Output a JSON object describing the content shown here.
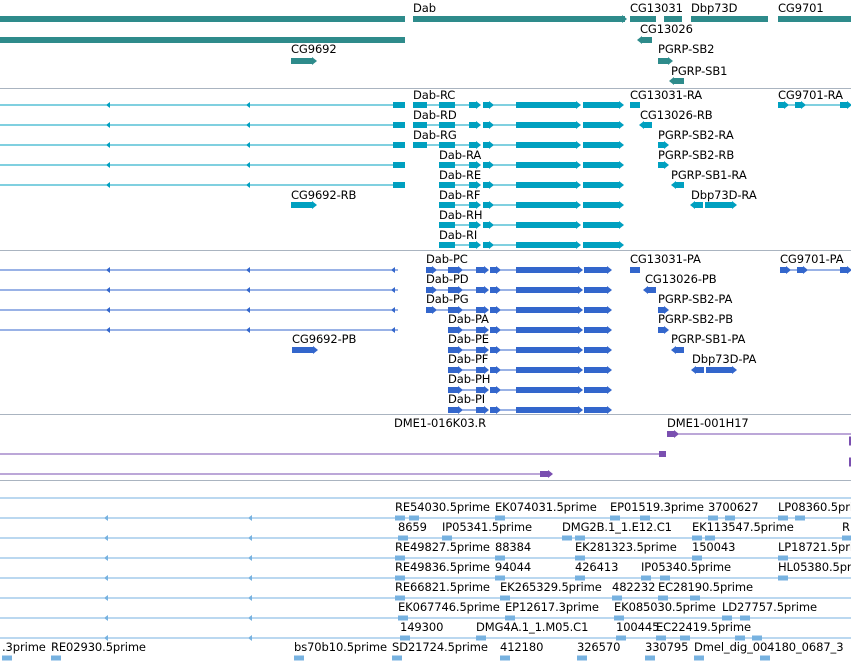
{
  "colors": {
    "gene": "#2e8b8b",
    "transcript": "#00a0c0",
    "protein": "#3366cc",
    "clone": "#7a4fb0",
    "est": "#77b2e0",
    "separator": "#aab4c0"
  },
  "tracks": {
    "genes": {
      "labels": [
        "Dab",
        "CG13031",
        "Dbp73D",
        "CG9701",
        "CG13026",
        "CG9692",
        "PGRP-SB2",
        "PGRP-SB1"
      ]
    },
    "transcripts": {
      "labels": [
        "Dab-RC",
        "CG13031-RA",
        "CG9701-RA",
        "Dab-RD",
        "CG13026-RB",
        "Dab-RG",
        "PGRP-SB2-RA",
        "Dab-RA",
        "PGRP-SB2-RB",
        "Dab-RE",
        "PGRP-SB1-RA",
        "CG9692-RB",
        "Dab-RF",
        "Dbp73D-RA",
        "Dab-RH",
        "Dab-RI"
      ]
    },
    "proteins": {
      "labels": [
        "Dab-PC",
        "CG13031-PA",
        "CG9701-PA",
        "Dab-PD",
        "CG13026-PB",
        "Dab-PG",
        "PGRP-SB2-PA",
        "Dab-PA",
        "PGRP-SB2-PB",
        "CG9692-PB",
        "Dab-PE",
        "PGRP-SB1-PA",
        "Dab-PF",
        "Dbp73D-PA",
        "Dab-PH",
        "Dab-PI"
      ]
    },
    "clones": {
      "labels": [
        "DME1-016K03.R",
        "DME1-001H17"
      ]
    },
    "ests": {
      "labels": [
        "RE54030.5prime",
        "EK074031.5prime",
        "EP01519.3prime",
        "3700627",
        "LP08360.5prime",
        "R",
        "8659",
        "IP05341.5prime",
        "DMG2B.1_1.E12.C1",
        "EK113547.5prime",
        "RE49827.5prime",
        "88384",
        "EK281323.5prime",
        "150043",
        "LP18721.5prime",
        "RE49836.5prime",
        "94044",
        "426413",
        "IP05340.5prime",
        "HL05380.5prime",
        "RE66821.5prime",
        "EK265329.5prime",
        "482232",
        "EC28190.5prime",
        "EK067746.5prime",
        "EP12617.3prime",
        "EK085030.5prime",
        "LD27757.5prime",
        "149300",
        "DMG4A.1_1.M05.C1",
        "100445",
        "EC22419.5prime",
        ".3prime",
        "RE02930.5prime",
        "bs70b10.5prime",
        "SD21724.5prime",
        "412180",
        "326570",
        "330795",
        "Dmel_dig_004180_0687_3"
      ]
    }
  }
}
